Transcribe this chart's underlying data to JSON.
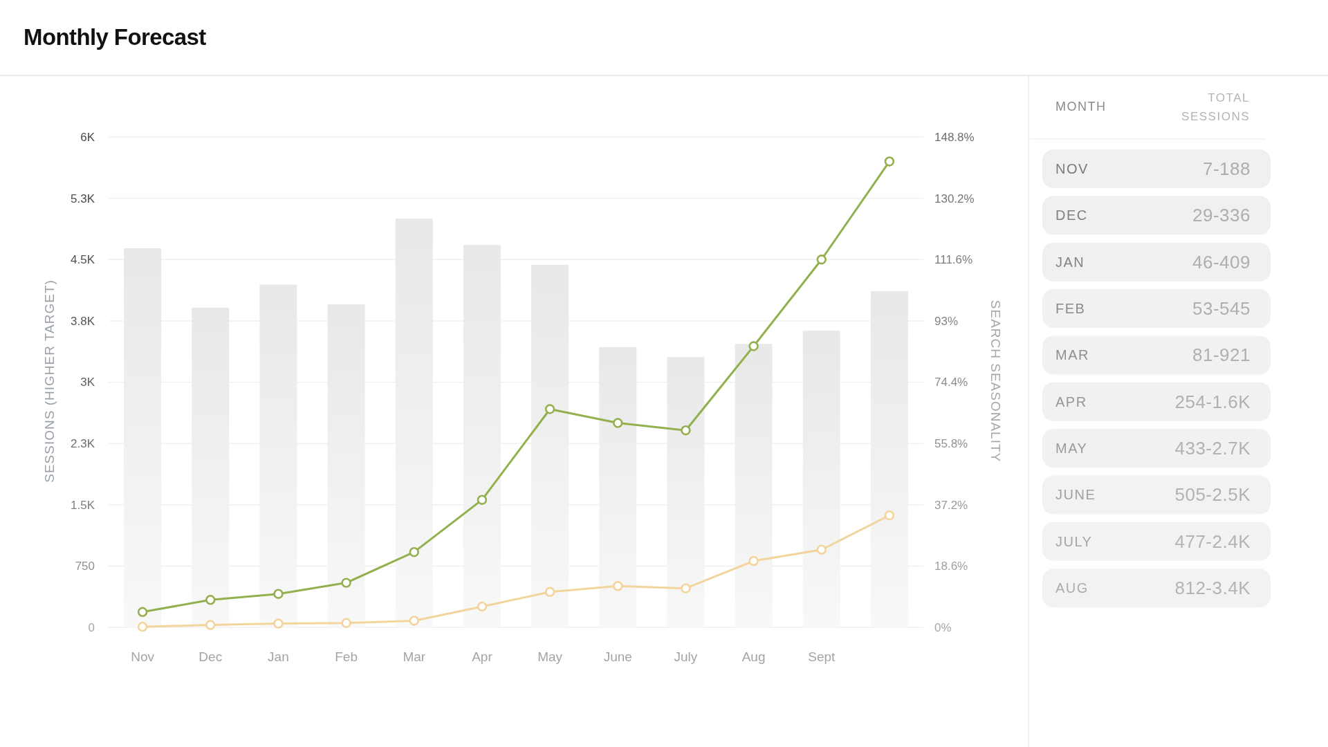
{
  "chart_data": [
    {
      "type": "bar",
      "title": "Monthly Forecast",
      "ylabel": "SESSIONS (HIGHER TARGET)",
      "y2label": "SEARCH SEASONALITY",
      "categories": [
        "Nov",
        "Dec",
        "Jan",
        "Feb",
        "Mar",
        "Apr",
        "May",
        "June",
        "July",
        "Aug",
        "Sept",
        null
      ],
      "series": [
        {
          "type": "bar",
          "axis": "y2",
          "color": "#e8e8e8",
          "values": [
            115,
            97,
            104,
            98,
            124,
            116,
            110,
            85,
            82,
            86,
            90,
            102
          ]
        },
        {
          "type": "line",
          "color": "#93b04f",
          "values": [
            188,
            336,
            409,
            545,
            921,
            1560,
            2670,
            2500,
            2410,
            3440,
            4500,
            5700
          ]
        },
        {
          "type": "line",
          "color": "#f3d49a",
          "values": [
            7,
            29,
            46,
            53,
            81,
            254,
            433,
            505,
            477,
            812,
            950,
            1370
          ]
        }
      ],
      "ylim": [
        0,
        6000
      ],
      "yticks": [
        0,
        750,
        {
          "value": 1500,
          "label": "1.5K"
        },
        {
          "value": 2250,
          "label": "2.3K"
        },
        {
          "value": 3000,
          "label": "3K"
        },
        {
          "value": 3750,
          "label": "3.8K"
        },
        {
          "value": 4500,
          "label": "4.5K"
        },
        {
          "value": 5250,
          "label": "5.3K"
        },
        {
          "value": 6000,
          "label": "6K"
        }
      ],
      "y2lim": [
        0,
        148.8
      ],
      "y2ticks": [
        {
          "value": 0,
          "label": "0%"
        },
        {
          "value": 18.6,
          "label": "18.6%"
        },
        {
          "value": 37.2,
          "label": "37.2%"
        },
        {
          "value": 55.8,
          "label": "55.8%"
        },
        {
          "value": 74.4,
          "label": "74.4%"
        },
        {
          "value": 93,
          "label": "93%"
        },
        {
          "value": 111.6,
          "label": "111.6%"
        },
        {
          "value": 130.2,
          "label": "130.2%"
        },
        {
          "value": 148.8,
          "label": "148.8%"
        }
      ],
      "grid": "y",
      "marker": "circle",
      "line_style": "solid"
    },
    {
      "type": "other",
      "annotations": [
        "MONTH",
        "TOTAL SESSIONS"
      ],
      "categories": [
        "NOV",
        "DEC",
        "JAN",
        "FEB",
        "MAR",
        "APR",
        "MAY",
        "JUNE",
        "JULY",
        "AUG"
      ],
      "value_labels": [
        "7-188",
        "29-336",
        "46-409",
        "53-545",
        "81-921",
        "254-1.6K",
        "433-2.7K",
        "505-2.5K",
        "477-2.4K",
        "812-3.4K"
      ]
    }
  ]
}
